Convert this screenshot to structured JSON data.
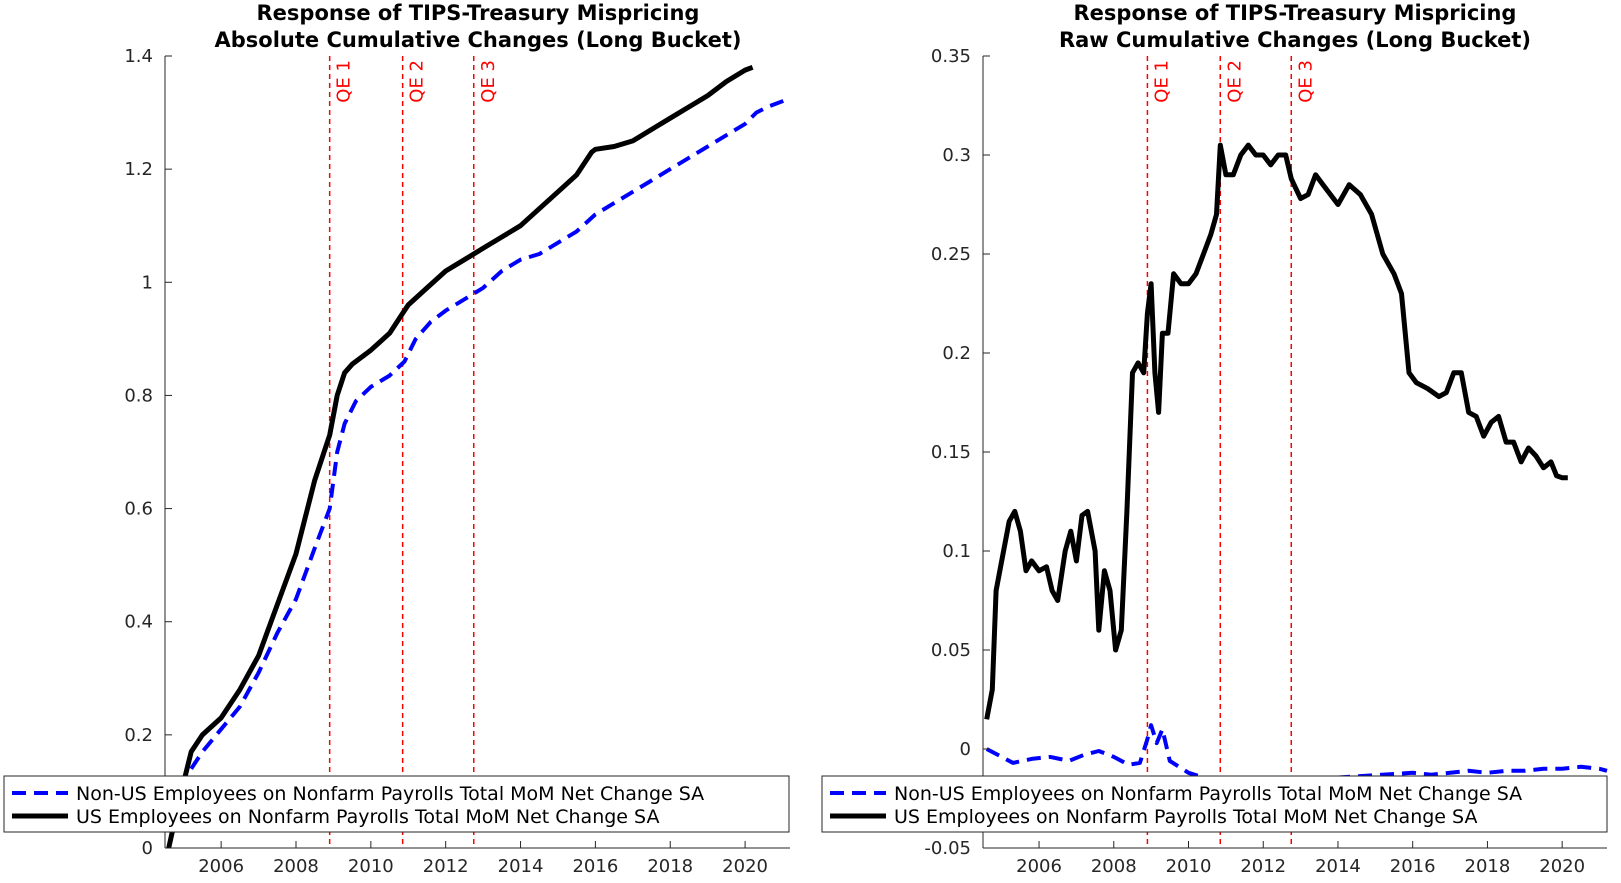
{
  "colors": {
    "us_series": "#000000",
    "non_us_series": "#0000ff",
    "qe_line": "#ff0000",
    "axis": "#262626",
    "background": "#ffffff"
  },
  "chart_data": [
    {
      "type": "line",
      "title_lines": [
        "Response of TIPS-Treasury Mispricing",
        "Absolute Cumulative Changes (Long Bucket)"
      ],
      "xlabel": "",
      "ylabel": "",
      "xlim": [
        2004.5,
        2021.2
      ],
      "ylim": [
        0,
        1.4
      ],
      "x_ticks": [
        2006,
        2008,
        2010,
        2012,
        2014,
        2016,
        2018,
        2020
      ],
      "x_tick_labels": [
        "2006",
        "2008",
        "2010",
        "2012",
        "2014",
        "2016",
        "2018",
        "2020"
      ],
      "y_ticks": [
        0,
        0.2,
        0.4,
        0.6,
        0.8,
        1,
        1.2,
        1.4
      ],
      "y_tick_labels": [
        "0",
        "0.2",
        "0.4",
        "0.6",
        "0.8",
        "1",
        "1.2",
        "1.4"
      ],
      "grid": false,
      "legend_position": "bottom-left",
      "qe_events": [
        {
          "label": "QE 1",
          "x": 2008.9
        },
        {
          "label": "QE 2",
          "x": 2010.85
        },
        {
          "label": "QE 3",
          "x": 2012.75
        }
      ],
      "series": [
        {
          "name": "Non-US Employees on Nonfarm Payrolls Total MoM Net Change SA",
          "style": "dashed",
          "color": "#0000ff",
          "x": [
            2005.2,
            2005.5,
            2006.0,
            2006.5,
            2007.0,
            2007.5,
            2008.0,
            2008.5,
            2008.9,
            2009.1,
            2009.3,
            2009.6,
            2010.0,
            2010.5,
            2010.9,
            2011.2,
            2011.6,
            2012.0,
            2012.5,
            2013.0,
            2013.5,
            2014.0,
            2014.5,
            2015.0,
            2015.5,
            2016.0,
            2016.5,
            2017.0,
            2017.5,
            2018.0,
            2018.5,
            2019.0,
            2019.5,
            2020.0,
            2020.3,
            2020.6,
            2021.2
          ],
          "y": [
            0.14,
            0.17,
            0.21,
            0.25,
            0.31,
            0.38,
            0.44,
            0.53,
            0.6,
            0.7,
            0.75,
            0.79,
            0.815,
            0.835,
            0.86,
            0.9,
            0.93,
            0.95,
            0.97,
            0.99,
            1.02,
            1.04,
            1.05,
            1.07,
            1.09,
            1.12,
            1.14,
            1.16,
            1.18,
            1.2,
            1.22,
            1.24,
            1.26,
            1.28,
            1.3,
            1.31,
            1.325
          ]
        },
        {
          "name": "US Employees on Nonfarm Payrolls Total MoM Net Change SA",
          "style": "solid",
          "color": "#000000",
          "x": [
            2004.6,
            2004.9,
            2005.2,
            2005.5,
            2006.0,
            2006.5,
            2007.0,
            2007.5,
            2008.0,
            2008.5,
            2008.9,
            2009.1,
            2009.3,
            2009.5,
            2010.0,
            2010.5,
            2010.85,
            2011.0,
            2011.5,
            2012.0,
            2012.5,
            2013.0,
            2013.5,
            2014.0,
            2014.5,
            2015.0,
            2015.5,
            2015.9,
            2016.0,
            2016.5,
            2017.0,
            2017.5,
            2018.0,
            2018.5,
            2019.0,
            2019.5,
            2020.0,
            2020.2
          ],
          "y": [
            0.0,
            0.09,
            0.17,
            0.2,
            0.23,
            0.28,
            0.34,
            0.43,
            0.52,
            0.65,
            0.73,
            0.8,
            0.84,
            0.855,
            0.88,
            0.91,
            0.945,
            0.96,
            0.99,
            1.02,
            1.04,
            1.06,
            1.08,
            1.1,
            1.13,
            1.16,
            1.19,
            1.23,
            1.235,
            1.24,
            1.25,
            1.27,
            1.29,
            1.31,
            1.33,
            1.355,
            1.375,
            1.38
          ]
        }
      ]
    },
    {
      "type": "line",
      "title_lines": [
        "Response of TIPS-Treasury Mispricing",
        "Raw Cumulative Changes (Long Bucket)"
      ],
      "xlabel": "",
      "ylabel": "",
      "xlim": [
        2004.5,
        2021.2
      ],
      "ylim": [
        -0.05,
        0.35
      ],
      "x_ticks": [
        2006,
        2008,
        2010,
        2012,
        2014,
        2016,
        2018,
        2020
      ],
      "x_tick_labels": [
        "2006",
        "2008",
        "2010",
        "2012",
        "2014",
        "2016",
        "2018",
        "2020"
      ],
      "y_ticks": [
        -0.05,
        0,
        0.05,
        0.1,
        0.15,
        0.2,
        0.25,
        0.3,
        0.35
      ],
      "y_tick_labels": [
        "-0.05",
        "0",
        "0.05",
        "0.1",
        "0.15",
        "0.2",
        "0.25",
        "0.3",
        "0.35"
      ],
      "grid": false,
      "legend_position": "bottom-left",
      "qe_events": [
        {
          "label": "QE 1",
          "x": 2008.9
        },
        {
          "label": "QE 2",
          "x": 2010.85
        },
        {
          "label": "QE 3",
          "x": 2012.75
        }
      ],
      "series": [
        {
          "name": "Non-US Employees on Nonfarm Payrolls Total MoM Net Change SA",
          "style": "dashed",
          "color": "#0000ff",
          "x": [
            2004.6,
            2004.9,
            2005.3,
            2005.8,
            2006.3,
            2006.8,
            2007.2,
            2007.6,
            2008.0,
            2008.4,
            2008.7,
            2008.9,
            2009.0,
            2009.15,
            2009.3,
            2009.5,
            2010.0,
            2010.5,
            2011.0,
            2016.0,
            2016.5,
            2017.0,
            2017.5,
            2018.0,
            2018.5,
            2019.0,
            2019.5,
            2020.0,
            2020.5,
            2021.0,
            2021.2
          ],
          "y": [
            0.0,
            -0.003,
            -0.007,
            -0.005,
            -0.004,
            -0.006,
            -0.003,
            -0.001,
            -0.004,
            -0.008,
            -0.007,
            0.005,
            0.012,
            0.003,
            0.01,
            -0.006,
            -0.012,
            -0.015,
            -0.018,
            -0.012,
            -0.013,
            -0.012,
            -0.011,
            -0.012,
            -0.011,
            -0.011,
            -0.01,
            -0.01,
            -0.009,
            -0.01,
            -0.011
          ]
        },
        {
          "name": "US Employees on Nonfarm Payrolls Total MoM Net Change SA",
          "style": "solid",
          "color": "#000000",
          "x": [
            2004.6,
            2004.75,
            2004.85,
            2005.0,
            2005.2,
            2005.35,
            2005.5,
            2005.65,
            2005.8,
            2006.0,
            2006.2,
            2006.35,
            2006.5,
            2006.7,
            2006.85,
            2007.0,
            2007.15,
            2007.3,
            2007.5,
            2007.6,
            2007.75,
            2007.9,
            2008.05,
            2008.2,
            2008.35,
            2008.5,
            2008.65,
            2008.8,
            2008.9,
            2009.0,
            2009.1,
            2009.2,
            2009.3,
            2009.45,
            2009.6,
            2009.8,
            2010.0,
            2010.2,
            2010.4,
            2010.6,
            2010.75,
            2010.85,
            2011.0,
            2011.2,
            2011.4,
            2011.6,
            2011.8,
            2012.0,
            2012.2,
            2012.4,
            2012.6,
            2012.75,
            2013.0,
            2013.2,
            2013.4,
            2013.6,
            2013.8,
            2014.0,
            2014.3,
            2014.6,
            2014.9,
            2015.2,
            2015.5,
            2015.7,
            2015.9,
            2016.1,
            2016.4,
            2016.7,
            2016.9,
            2017.1,
            2017.3,
            2017.5,
            2017.7,
            2017.9,
            2018.1,
            2018.3,
            2018.5,
            2018.7,
            2018.9,
            2019.1,
            2019.3,
            2019.5,
            2019.7,
            2019.85,
            2020.0,
            2020.15
          ],
          "y": [
            0.015,
            0.03,
            0.08,
            0.095,
            0.115,
            0.12,
            0.11,
            0.09,
            0.095,
            0.09,
            0.092,
            0.08,
            0.075,
            0.1,
            0.11,
            0.095,
            0.118,
            0.12,
            0.1,
            0.06,
            0.09,
            0.08,
            0.05,
            0.06,
            0.12,
            0.19,
            0.195,
            0.19,
            0.22,
            0.235,
            0.19,
            0.17,
            0.21,
            0.21,
            0.24,
            0.235,
            0.235,
            0.24,
            0.25,
            0.26,
            0.27,
            0.305,
            0.29,
            0.29,
            0.3,
            0.305,
            0.3,
            0.3,
            0.295,
            0.3,
            0.3,
            0.288,
            0.278,
            0.28,
            0.29,
            0.285,
            0.28,
            0.275,
            0.285,
            0.28,
            0.27,
            0.25,
            0.24,
            0.23,
            0.19,
            0.185,
            0.182,
            0.178,
            0.18,
            0.19,
            0.19,
            0.17,
            0.168,
            0.158,
            0.165,
            0.168,
            0.155,
            0.155,
            0.145,
            0.152,
            0.148,
            0.142,
            0.145,
            0.138,
            0.137,
            0.137
          ]
        }
      ]
    }
  ]
}
